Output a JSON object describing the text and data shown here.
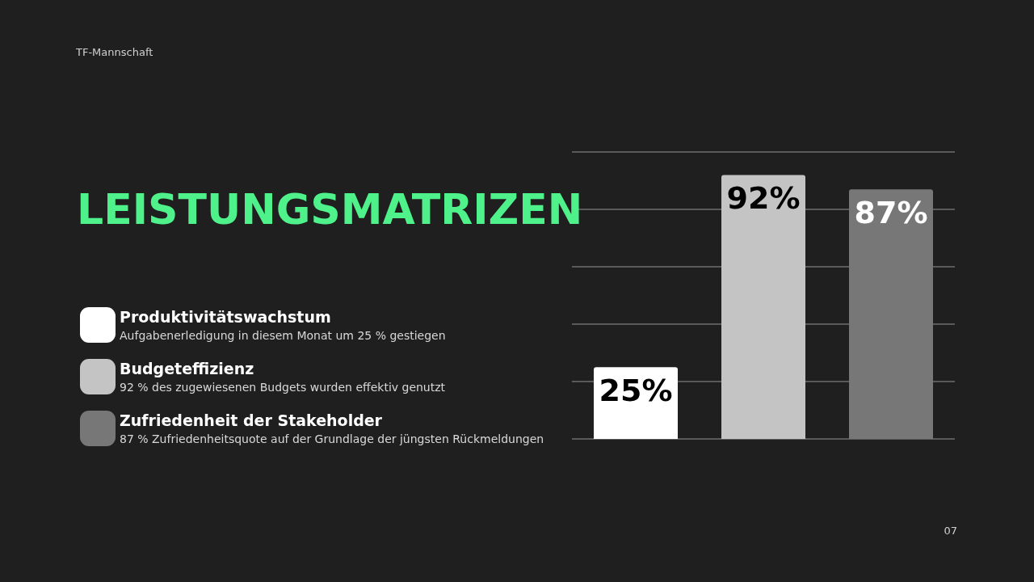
{
  "chart_data": {
    "type": "bar",
    "title": "LEISTUNGSMATRIZEN",
    "categories": [
      null,
      null,
      null
    ],
    "series": [
      {
        "name": "Produktivitätswachstum",
        "color": "#ffffff",
        "values": [
          25,
          null,
          null
        ],
        "value_labels": [
          "25%",
          null,
          null
        ]
      },
      {
        "name": "Budgeteffizienz",
        "color": "#c4c4c4",
        "values": [
          null,
          92,
          null
        ],
        "value_labels": [
          null,
          "92%",
          null
        ]
      },
      {
        "name": "Zufriedenheit der Stakeholder",
        "color": "#777777",
        "values": [
          null,
          null,
          87
        ],
        "value_labels": [
          null,
          null,
          "87%"
        ]
      }
    ],
    "stacked": true,
    "ylim": [
      0,
      100
    ],
    "yticks": [
      {
        "value": 0,
        "label": null
      },
      {
        "value": 20,
        "label": null
      },
      {
        "value": 40,
        "label": null
      },
      {
        "value": 60,
        "label": null
      },
      {
        "value": 80,
        "label": null
      },
      {
        "value": 100,
        "label": null
      }
    ],
    "grid": "y",
    "legend": "left",
    "annotations": [
      "TF-Mannschaft",
      "Aufgabenerledigung in diesem Monat um 25 % gestiegen",
      "92 % des zugewiesenen Budgets wurden effektiv genutzt",
      "87 % Zufriedenheitsquote auf der Grundlage der jüngsten Rückmeldungen",
      "07"
    ]
  }
}
